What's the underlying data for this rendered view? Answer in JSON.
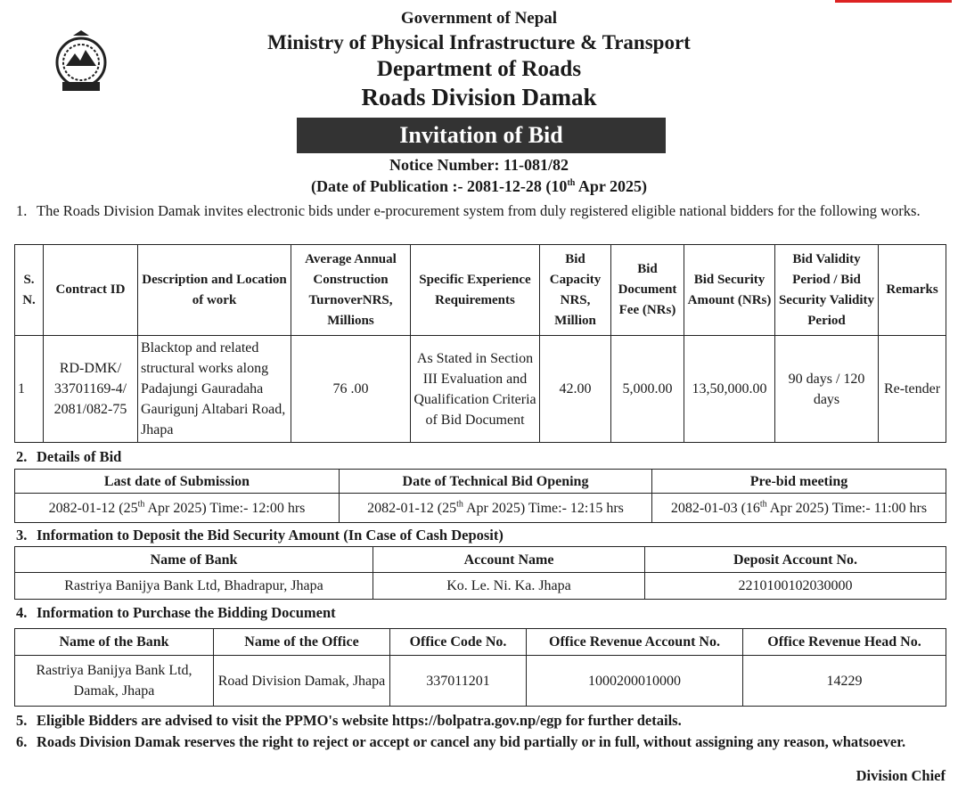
{
  "header": {
    "government": "Government of Nepal",
    "ministry": "Ministry of Physical Infrastructure & Transport",
    "department": "Department of Roads",
    "division": "Roads Division Damak"
  },
  "banner": "Invitation of Bid",
  "notice": "Notice Number: 11-081/82",
  "publication": [
    "(Date of Publication :- 2081-12-28 (10",
    "th",
    " Apr 2025)"
  ],
  "sections": [
    {
      "number": "1.",
      "text": "The Roads Division Damak invites electronic bids under e-procurement system from duly registered eligible national bidders for the following works.",
      "table": {
        "columns": [
          "S. N.",
          "Contract ID",
          "Description and Location of work",
          "Average Annual Construction TurnoverNRS, Millions",
          "Specific Experience Requirements",
          "Bid Capacity NRS, Million",
          "Bid Document Fee (NRs)",
          "Bid Security Amount (NRs)",
          "Bid Validity Period / Bid Security Validity Period",
          "Remarks"
        ],
        "rows": [
          [
            "1",
            "RD-DMK/ 33701169-4/ 2081/082-75",
            "Blacktop and related structural works along Padajungi Gauradaha Gaurigunj Altabari Road, Jhapa",
            "76 .00",
            "As Stated in Section III Evaluation and Qualification Criteria of Bid Document",
            "42.00",
            "5,000.00",
            "13,50,000.00",
            "90 days / 120 days",
            "Re-tender"
          ]
        ]
      }
    },
    {
      "number": "2.",
      "text": "Details of Bid",
      "table": {
        "columns": [
          "Last date of Submission",
          "Date of Technical Bid Opening",
          "Pre-bid meeting"
        ],
        "rows": [
          [
            [
              "2082-01-12 (25",
              "th",
              " Apr 2025) Time:- 12:00 hrs"
            ],
            [
              "2082-01-12 (25",
              "th",
              " Apr 2025) Time:- 12:15 hrs"
            ],
            [
              "2082-01-03 (16",
              "th",
              " Apr 2025)  Time:- 11:00 hrs"
            ]
          ]
        ]
      }
    },
    {
      "number": "3.",
      "text": "Information to Deposit the Bid Security Amount (In Case of Cash Deposit)",
      "table": {
        "columns": [
          "Name of Bank",
          "Account Name",
          "Deposit Account No."
        ],
        "rows": [
          [
            "Rastriya Banijya Bank Ltd, Bhadrapur, Jhapa",
            "Ko. Le. Ni. Ka. Jhapa",
            "2210100102030000"
          ]
        ]
      }
    },
    {
      "number": "4.",
      "text": "Information to Purchase the Bidding Document",
      "table": {
        "columns": [
          "Name of the Bank",
          "Name of the Office",
          "Office Code No.",
          "Office Revenue Account No.",
          "Office Revenue Head No."
        ],
        "rows": [
          [
            "Rastriya Banijya Bank Ltd, Damak, Jhapa",
            "Road Division Damak, Jhapa",
            "337011201",
            "1000200010000",
            "14229"
          ]
        ]
      }
    },
    {
      "number": "5.",
      "text": "Eligible Bidders are advised to visit the PPMO's website https://bolpatra.gov.np/egp for further details."
    },
    {
      "number": "6.",
      "text": "Roads Division Damak reserves the right to reject or accept or cancel any bid partially or in full, without assigning any reason, whatsoever."
    }
  ],
  "signature": "Division Chief"
}
